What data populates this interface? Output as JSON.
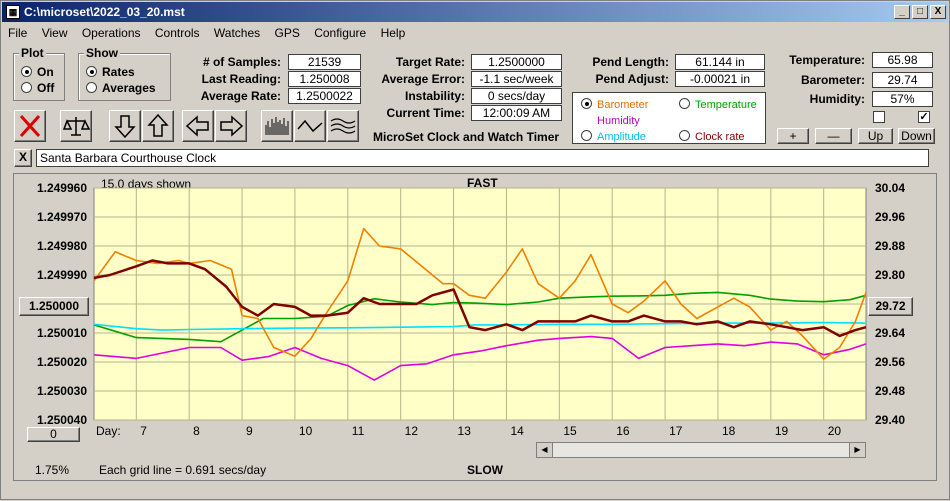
{
  "window": {
    "title": "C:\\microset\\2022_03_20.mst",
    "icon": "app-icon",
    "min_glyph": "_",
    "max_glyph": "□",
    "close_glyph": "X"
  },
  "menu": [
    "File",
    "View",
    "Operations",
    "Controls",
    "Watches",
    "GPS",
    "Configure",
    "Help"
  ],
  "plot_group": {
    "title": "Plot",
    "options": [
      "On",
      "Off"
    ],
    "selected": "On"
  },
  "show_group": {
    "title": "Show",
    "options": [
      "Rates",
      "Averages"
    ],
    "selected": "Rates"
  },
  "stats": {
    "samples_label": "# of Samples:",
    "samples": "21539",
    "last_reading_label": "Last Reading:",
    "last_reading": "1.250008",
    "average_rate_label": "Average Rate:",
    "average_rate": "1.2500022"
  },
  "rates": {
    "target_rate_label": "Target Rate:",
    "target_rate": "1.2500000",
    "average_error_label": "Average Error:",
    "average_error": "-1.1 sec/week",
    "instability_label": "Instability:",
    "instability": "0 secs/day",
    "current_time_label": "Current Time:",
    "current_time": "12:00:09 AM"
  },
  "app_caption": "MicroSet Clock and Watch Timer",
  "pendulum": {
    "length_label": "Pend Length:",
    "length": "61.144 in",
    "adjust_label": "Pend Adjust:",
    "adjust": "-0.00021 in"
  },
  "environment": {
    "temperature_label": "Temperature:",
    "temperature": "65.98",
    "barometer_label": "Barometer:",
    "barometer": "29.74",
    "humidity_label": "Humidity:",
    "humidity": "57%"
  },
  "checkbox_checked_glyph": "✓",
  "param_select": {
    "options": [
      {
        "label": "Barometer",
        "color": "#e07000",
        "selected": true
      },
      {
        "label": "Temperature",
        "color": "#00a000",
        "selected": false
      },
      {
        "label": "Humidity",
        "color": "#c000c0",
        "selected": false
      },
      {
        "label": "Clock rate",
        "color": "#800000",
        "selected": false
      },
      {
        "label": "Amplitude",
        "color": "#00c0e0",
        "selected": false
      }
    ]
  },
  "adjust_buttons": {
    "plus": "+",
    "minus": "—",
    "up": "Up",
    "down": "Down"
  },
  "toolbar_icons": [
    "clear-x-icon",
    "balance-scale-icon",
    "arrow-down-icon",
    "arrow-up-icon",
    "arrow-left-icon",
    "arrow-right-icon",
    "histogram-icon",
    "wave-icon",
    "multi-wave-icon"
  ],
  "clock_name": {
    "clear_glyph": "X",
    "value": "Santa Barbara Courthouse Clock"
  },
  "chart": {
    "days_shown": "15.0 days shown",
    "top_label": "FAST",
    "bottom_label": "SLOW",
    "day_label": "Day:",
    "grid_note": "Each grid line = 0.691 secs/day",
    "percent": "1.75%",
    "left_center_button": "1.250000",
    "right_center_button": "29.72",
    "bottom_left_button": "0"
  },
  "chart_data": {
    "type": "line",
    "x_unit": "day",
    "xlim": [
      6.2,
      20.8
    ],
    "x_ticks": [
      7,
      8,
      9,
      10,
      11,
      12,
      13,
      14,
      15,
      16,
      17,
      18,
      19,
      20
    ],
    "y_left_ticks": [
      "1.249960",
      "1.249970",
      "1.249980",
      "1.249990",
      "1.250000",
      "1.250010",
      "1.250020",
      "1.250030",
      "1.250040"
    ],
    "y_left_lim": [
      1.24996,
      1.25004
    ],
    "y_right_ticks": [
      "30.04",
      "29.96",
      "29.88",
      "29.80",
      "29.72",
      "29.64",
      "29.56",
      "29.48",
      "29.40"
    ],
    "y_right_lim": [
      29.4,
      30.04
    ],
    "grid": true,
    "background": "#ffffc8",
    "series": [
      {
        "color": "#00a000",
        "x": [
          6.2,
          7,
          8,
          8.6,
          9,
          9.4,
          10,
          10.6,
          11,
          11.5,
          12,
          12.6,
          13,
          13.4,
          14,
          14.6,
          15,
          15.6,
          16,
          16.5,
          17,
          17.5,
          18,
          18.6,
          19,
          19.5,
          20,
          20.5,
          20.8
        ],
        "y": [
          1.2500072,
          1.2500116,
          1.2500122,
          1.250013,
          1.250009,
          1.250005,
          1.250005,
          1.2500042,
          1.2500005,
          1.2499982,
          1.2499993,
          1.2500002,
          1.2499995,
          1.2499997,
          1.2500002,
          1.2499993,
          1.249998,
          1.2499975,
          1.2499973,
          1.2499972,
          1.249997,
          1.2499963,
          1.249996,
          1.249997,
          1.2499983,
          1.249999,
          1.2499992,
          1.2499985,
          1.249997
        ]
      },
      {
        "color": "#00e0ff",
        "x": [
          6.2,
          7,
          7.5,
          8,
          9,
          10,
          11,
          12,
          13,
          13.4,
          14,
          15,
          16,
          17,
          18,
          19,
          20,
          20.8
        ],
        "y": [
          1.250007,
          1.2500085,
          1.250009,
          1.2500088,
          1.2500085,
          1.2500083,
          1.2500082,
          1.250008,
          1.2500078,
          1.2500072,
          1.2500072,
          1.250007,
          1.250007,
          1.2500068,
          1.2500066,
          1.2500066,
          1.2500064,
          1.2500066
        ]
      },
      {
        "color": "#e000e0",
        "x": [
          6.2,
          7,
          8,
          8.6,
          9,
          9.5,
          10,
          10.5,
          11,
          11.5,
          12,
          12.5,
          13,
          13.5,
          14,
          14.6,
          15,
          15.6,
          16,
          16.5,
          17,
          17.5,
          18,
          18.5,
          19,
          19.5,
          20,
          20.5,
          20.8
        ],
        "y": [
          29.58,
          29.57,
          29.6,
          29.6,
          29.565,
          29.575,
          29.6,
          29.57,
          29.55,
          29.51,
          29.55,
          29.555,
          29.58,
          29.59,
          29.605,
          29.62,
          29.625,
          29.63,
          29.625,
          29.57,
          29.6,
          29.605,
          29.61,
          29.605,
          29.615,
          29.61,
          29.58,
          29.595,
          29.61
        ]
      },
      {
        "color": "#f08000",
        "x": [
          6.2,
          6.6,
          7,
          7.4,
          7.8,
          8,
          8.4,
          8.8,
          9,
          9.3,
          9.6,
          10,
          10.3,
          10.6,
          11,
          11.3,
          11.6,
          12,
          12.4,
          12.8,
          13,
          13.3,
          13.6,
          14,
          14.3,
          14.6,
          15,
          15.3,
          15.6,
          16,
          16.3,
          16.6,
          17,
          17.3,
          17.6,
          18,
          18.3,
          18.6,
          19,
          19.3,
          19.6,
          20,
          20.3,
          20.6,
          20.8
        ],
        "y": [
          1.249992,
          1.249982,
          1.249985,
          1.249986,
          1.249985,
          1.249986,
          1.249985,
          1.249988,
          1.250004,
          1.250005,
          1.250015,
          1.250018,
          1.250012,
          1.250003,
          1.249992,
          1.249974,
          1.24998,
          1.249981,
          1.249987,
          1.249993,
          1.249993,
          1.249997,
          1.249998,
          1.249989,
          1.249981,
          1.249993,
          1.249998,
          1.249992,
          1.249983,
          1.25,
          1.250003,
          1.249999,
          1.249992,
          1.25,
          1.250005,
          1.250001,
          1.249998,
          1.250001,
          1.250009,
          1.250006,
          1.250011,
          1.250019,
          1.250015,
          1.250006,
          1.249996
        ]
      },
      {
        "color": "#800000",
        "x": [
          6.2,
          6.5,
          7,
          7.3,
          7.6,
          8,
          8.3,
          8.7,
          9,
          9.3,
          9.6,
          10,
          10.3,
          10.6,
          11,
          11.3,
          11.6,
          12,
          12.3,
          12.6,
          13,
          13.3,
          13.6,
          14,
          14.3,
          14.6,
          15,
          15.3,
          15.6,
          16,
          16.3,
          16.6,
          17,
          17.3,
          17.6,
          18,
          18.3,
          18.6,
          19,
          19.3,
          19.6,
          20,
          20.3,
          20.6,
          20.8
        ],
        "y": [
          1.249991,
          1.24999,
          1.249987,
          1.249985,
          1.249986,
          1.249986,
          1.249988,
          1.249994,
          1.250001,
          1.250004,
          1.25,
          1.250001,
          1.250004,
          1.250004,
          1.250003,
          1.249998,
          1.25,
          1.25,
          1.25,
          1.249997,
          1.249995,
          1.250008,
          1.250009,
          1.250007,
          1.250009,
          1.250006,
          1.250006,
          1.250006,
          1.250004,
          1.250006,
          1.250006,
          1.250004,
          1.250006,
          1.250006,
          1.250007,
          1.250006,
          1.250008,
          1.250006,
          1.250007,
          1.250008,
          1.250009,
          1.250008,
          1.250011,
          1.250009,
          1.250008
        ]
      }
    ]
  }
}
